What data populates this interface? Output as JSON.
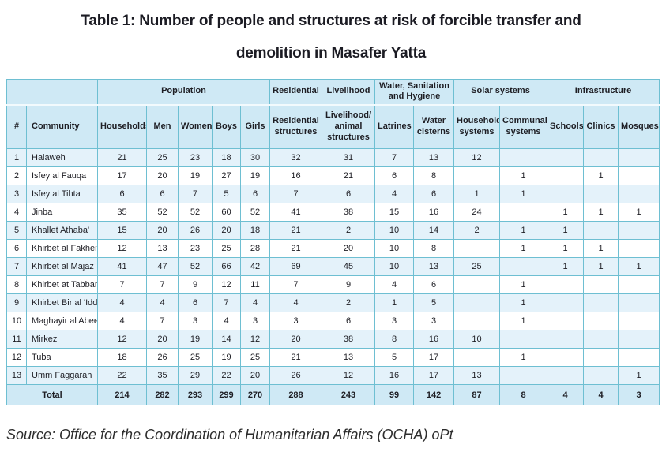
{
  "title": {
    "line1": "Table 1: Number of people and structures at risk of forcible transfer and",
    "line2": "demolition in Masafer Yatta"
  },
  "table": {
    "group_headers": [
      {
        "label": "",
        "span": 2
      },
      {
        "label": "Population",
        "span": 5
      },
      {
        "label": "Residential",
        "span": 1
      },
      {
        "label": "Livelihood",
        "span": 1
      },
      {
        "label": "Water, Sanitation and Hygiene",
        "span": 2
      },
      {
        "label": "Solar systems",
        "span": 2
      },
      {
        "label": "Infrastructure",
        "span": 3
      }
    ],
    "column_headers": [
      "#",
      "Community",
      "Households",
      "Men",
      "Women",
      "Boys",
      "Girls",
      "Residential structures",
      "Livelihood/ animal structures",
      "Latrines",
      "Water cisterns",
      "Household systems",
      "Communal systems",
      "Schools",
      "Clinics",
      "Mosques"
    ],
    "rows": [
      {
        "num": "1",
        "community": "Halaweh",
        "values": [
          "21",
          "25",
          "23",
          "18",
          "30",
          "32",
          "31",
          "7",
          "13",
          "12",
          "",
          "",
          "",
          ""
        ]
      },
      {
        "num": "2",
        "community": "Isfey al Fauqa",
        "values": [
          "17",
          "20",
          "19",
          "27",
          "19",
          "16",
          "21",
          "6",
          "8",
          "",
          "1",
          "",
          "1",
          ""
        ]
      },
      {
        "num": "3",
        "community": "Isfey al Tihta",
        "values": [
          "6",
          "6",
          "7",
          "5",
          "6",
          "7",
          "6",
          "4",
          "6",
          "1",
          "1",
          "",
          "",
          ""
        ]
      },
      {
        "num": "4",
        "community": "Jinba",
        "values": [
          "35",
          "52",
          "52",
          "60",
          "52",
          "41",
          "38",
          "15",
          "16",
          "24",
          "",
          "1",
          "1",
          "1"
        ]
      },
      {
        "num": "5",
        "community": "Khallet Athaba'",
        "values": [
          "15",
          "20",
          "26",
          "20",
          "18",
          "21",
          "2",
          "10",
          "14",
          "2",
          "1",
          "1",
          "",
          ""
        ]
      },
      {
        "num": "6",
        "community": "Khirbet al Fakheit",
        "values": [
          "12",
          "13",
          "23",
          "25",
          "28",
          "21",
          "20",
          "10",
          "8",
          "",
          "1",
          "1",
          "1",
          ""
        ]
      },
      {
        "num": "7",
        "community": "Khirbet al Majaz",
        "values": [
          "41",
          "47",
          "52",
          "66",
          "42",
          "69",
          "45",
          "10",
          "13",
          "25",
          "",
          "1",
          "1",
          "1"
        ]
      },
      {
        "num": "8",
        "community": "Khirbet at Tabban",
        "values": [
          "7",
          "7",
          "9",
          "12",
          "11",
          "7",
          "9",
          "4",
          "6",
          "",
          "1",
          "",
          "",
          ""
        ]
      },
      {
        "num": "9",
        "community": "Khirbet Bir al 'Idd",
        "values": [
          "4",
          "4",
          "6",
          "7",
          "4",
          "4",
          "2",
          "1",
          "5",
          "",
          "1",
          "",
          "",
          ""
        ]
      },
      {
        "num": "10",
        "community": "Maghayir al Abeed",
        "values": [
          "4",
          "7",
          "3",
          "4",
          "3",
          "3",
          "6",
          "3",
          "3",
          "",
          "1",
          "",
          "",
          ""
        ]
      },
      {
        "num": "11",
        "community": "Mirkez",
        "values": [
          "12",
          "20",
          "19",
          "14",
          "12",
          "20",
          "38",
          "8",
          "16",
          "10",
          "",
          "",
          "",
          ""
        ]
      },
      {
        "num": "12",
        "community": "Tuba",
        "values": [
          "18",
          "26",
          "25",
          "19",
          "25",
          "21",
          "13",
          "5",
          "17",
          "",
          "1",
          "",
          "",
          ""
        ]
      },
      {
        "num": "13",
        "community": "Umm Faggarah",
        "values": [
          "22",
          "35",
          "29",
          "22",
          "20",
          "26",
          "12",
          "16",
          "17",
          "13",
          "",
          "",
          "",
          "1"
        ]
      }
    ],
    "total_row": {
      "label": "Total",
      "values": [
        "214",
        "282",
        "293",
        "299",
        "270",
        "288",
        "243",
        "99",
        "142",
        "87",
        "8",
        "4",
        "4",
        "3"
      ]
    }
  },
  "source": "Source: Office for the Coordination of Humanitarian Affairs (OCHA) oPt",
  "colors": {
    "border": "#6ebfd2",
    "header_bg": "#cfe9f5",
    "stripe_bg": "#e4f2fa"
  }
}
